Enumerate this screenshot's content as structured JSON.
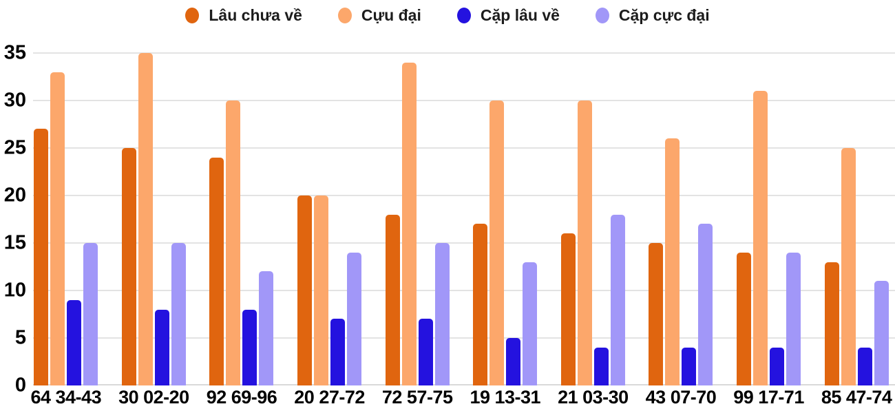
{
  "chart_data": {
    "type": "bar",
    "title": "",
    "categories": [
      "64 34-43",
      "30 02-20",
      "92 69-96",
      "20 27-72",
      "72 57-75",
      "19 13-31",
      "21 03-30",
      "43 07-70",
      "99 17-71",
      "85 47-74"
    ],
    "series": [
      {
        "name": "Lâu chưa về",
        "color": "#E0650F",
        "values": [
          27,
          25,
          24,
          20,
          18,
          17,
          16,
          15,
          14,
          13
        ]
      },
      {
        "name": "Cựu đại",
        "color": "#FCA76B",
        "values": [
          33,
          35,
          30,
          20,
          34,
          30,
          30,
          26,
          31,
          25
        ]
      },
      {
        "name": "Cặp lâu về",
        "color": "#2412DF",
        "values": [
          9,
          8,
          8,
          7,
          7,
          5,
          4,
          4,
          4,
          4
        ]
      },
      {
        "name": "Cặp cực đại",
        "color": "#A197F8",
        "values": [
          15,
          15,
          12,
          14,
          15,
          13,
          18,
          17,
          14,
          11
        ]
      }
    ],
    "yticks": [
      0,
      5,
      10,
      15,
      20,
      25,
      30,
      35
    ],
    "ylim": [
      0,
      35
    ],
    "ytick_step": 5,
    "grid": "horizontal",
    "legend_position": "top",
    "xlabel": "",
    "ylabel": ""
  },
  "colors": {
    "background": "#ffffff",
    "gridline": "#e3e3e3",
    "baseline": "#d9d9d9",
    "axis_label": "#000000",
    "legend_label": "#1c1c1c"
  }
}
